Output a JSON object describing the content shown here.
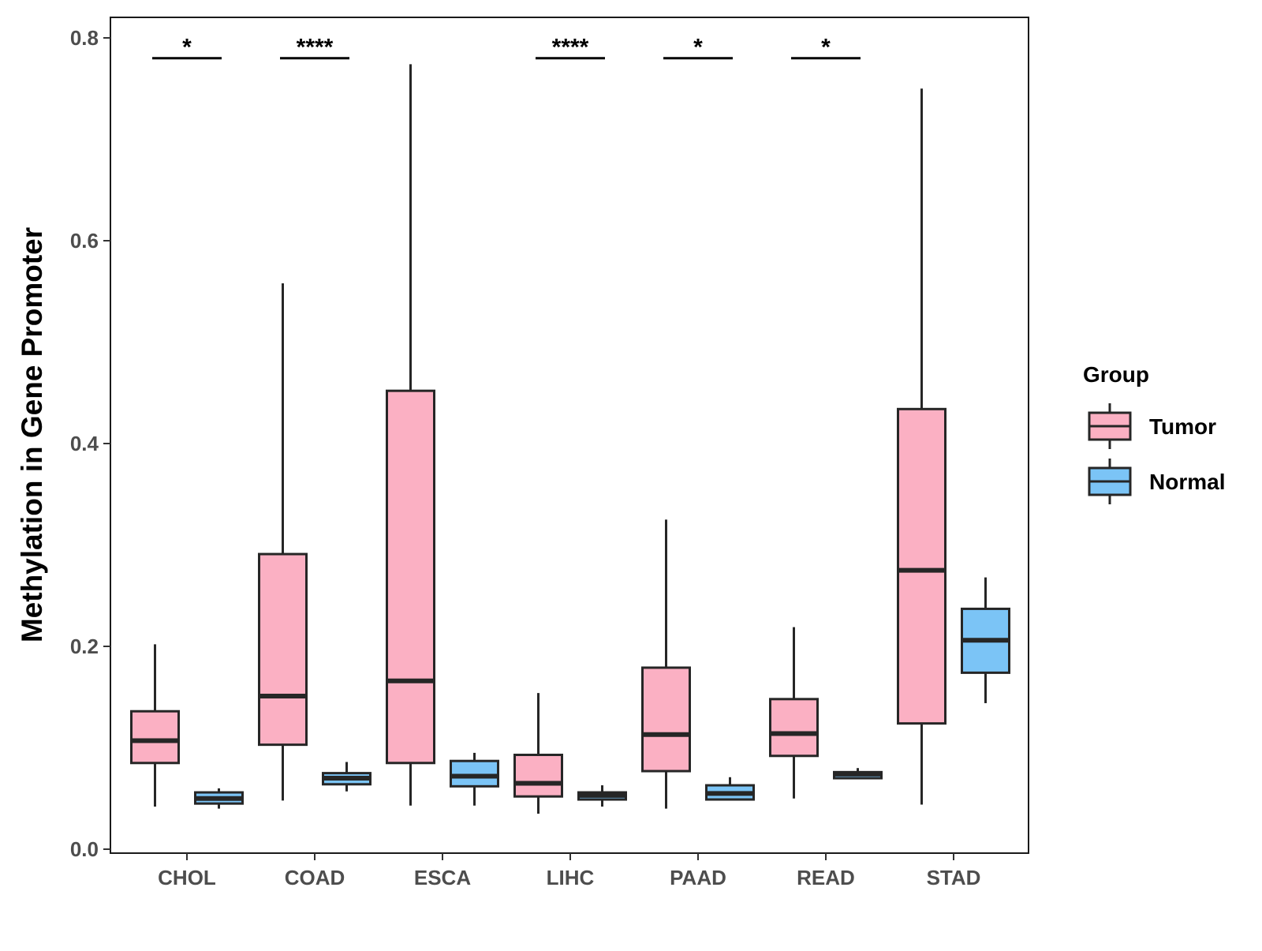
{
  "chart_data": {
    "type": "boxplot",
    "title": "",
    "xlabel": "",
    "ylabel": "Methylation in Gene Promoter",
    "ylim": [
      0,
      0.8
    ],
    "yticks": [
      0.0,
      0.2,
      0.4,
      0.6,
      0.8
    ],
    "ytick_labels": [
      "0.0",
      "0.2",
      "0.4",
      "0.6",
      "0.8"
    ],
    "grid": false,
    "categories": [
      "CHOL",
      "COAD",
      "ESCA",
      "LIHC",
      "PAAD",
      "READ",
      "STAD"
    ],
    "legend": {
      "title": "Group",
      "position": "right",
      "entries": [
        {
          "name": "Tumor",
          "color": "#FBB0C3"
        },
        {
          "name": "Normal",
          "color": "#7BC4F6"
        }
      ]
    },
    "series": [
      {
        "name": "Tumor",
        "color": "#FBB0C3",
        "boxes": [
          {
            "category": "CHOL",
            "min": 0.042,
            "q1": 0.085,
            "median": 0.107,
            "q3": 0.136,
            "max": 0.202
          },
          {
            "category": "COAD",
            "min": 0.048,
            "q1": 0.103,
            "median": 0.151,
            "q3": 0.291,
            "max": 0.558
          },
          {
            "category": "ESCA",
            "min": 0.043,
            "q1": 0.085,
            "median": 0.166,
            "q3": 0.452,
            "max": 0.774
          },
          {
            "category": "LIHC",
            "min": 0.035,
            "q1": 0.052,
            "median": 0.065,
            "q3": 0.093,
            "max": 0.154
          },
          {
            "category": "PAAD",
            "min": 0.04,
            "q1": 0.077,
            "median": 0.113,
            "q3": 0.179,
            "max": 0.325
          },
          {
            "category": "READ",
            "min": 0.05,
            "q1": 0.092,
            "median": 0.114,
            "q3": 0.148,
            "max": 0.219
          },
          {
            "category": "STAD",
            "min": 0.044,
            "q1": 0.124,
            "median": 0.275,
            "q3": 0.434,
            "max": 0.75
          }
        ]
      },
      {
        "name": "Normal",
        "color": "#7BC4F6",
        "boxes": [
          {
            "category": "CHOL",
            "min": 0.04,
            "q1": 0.045,
            "median": 0.05,
            "q3": 0.056,
            "max": 0.06
          },
          {
            "category": "COAD",
            "min": 0.057,
            "q1": 0.064,
            "median": 0.07,
            "q3": 0.075,
            "max": 0.086
          },
          {
            "category": "ESCA",
            "min": 0.043,
            "q1": 0.062,
            "median": 0.072,
            "q3": 0.087,
            "max": 0.095
          },
          {
            "category": "LIHC",
            "min": 0.042,
            "q1": 0.049,
            "median": 0.053,
            "q3": 0.056,
            "max": 0.063
          },
          {
            "category": "PAAD",
            "min": 0.048,
            "q1": 0.049,
            "median": 0.055,
            "q3": 0.063,
            "max": 0.071
          },
          {
            "category": "READ",
            "min": 0.069,
            "q1": 0.07,
            "median": 0.074,
            "q3": 0.076,
            "max": 0.08
          },
          {
            "category": "STAD",
            "min": 0.144,
            "q1": 0.174,
            "median": 0.206,
            "q3": 0.237,
            "max": 0.268
          }
        ]
      }
    ],
    "significance": [
      {
        "category": "CHOL",
        "label": "*",
        "y": 0.78
      },
      {
        "category": "COAD",
        "label": "****",
        "y": 0.78
      },
      {
        "category": "LIHC",
        "label": "****",
        "y": 0.78
      },
      {
        "category": "PAAD",
        "label": "*",
        "y": 0.78
      },
      {
        "category": "READ",
        "label": "*",
        "y": 0.78
      }
    ]
  }
}
